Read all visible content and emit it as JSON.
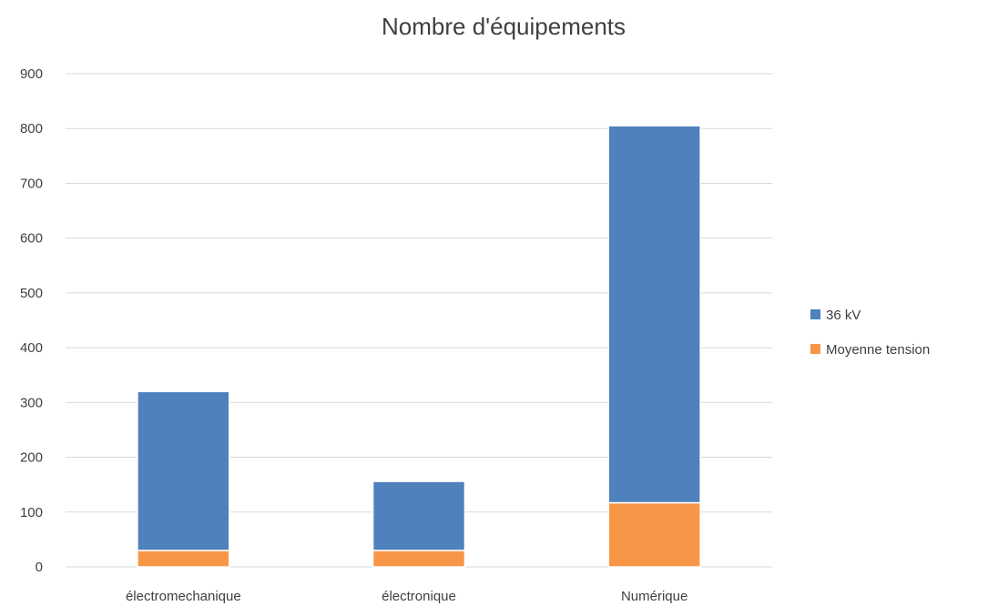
{
  "chart_data": {
    "type": "bar",
    "stacked": true,
    "title": "Nombre d'équipements",
    "xlabel": "",
    "ylabel": "",
    "categories": [
      "électromechanique",
      "électronique",
      "Numérique"
    ],
    "series": [
      {
        "name": "Moyenne tension",
        "values": [
          30,
          30,
          117
        ],
        "color": "#f79646"
      },
      {
        "name": "36 kV",
        "values": [
          290,
          126,
          688
        ],
        "color": "#4f81bd"
      }
    ],
    "ylim": [
      0,
      900
    ],
    "yticks": [
      0,
      100,
      200,
      300,
      400,
      500,
      600,
      700,
      800,
      900
    ],
    "grid": true,
    "legend_position": "right",
    "legend_order": [
      "36 kV",
      "Moyenne tension"
    ]
  }
}
